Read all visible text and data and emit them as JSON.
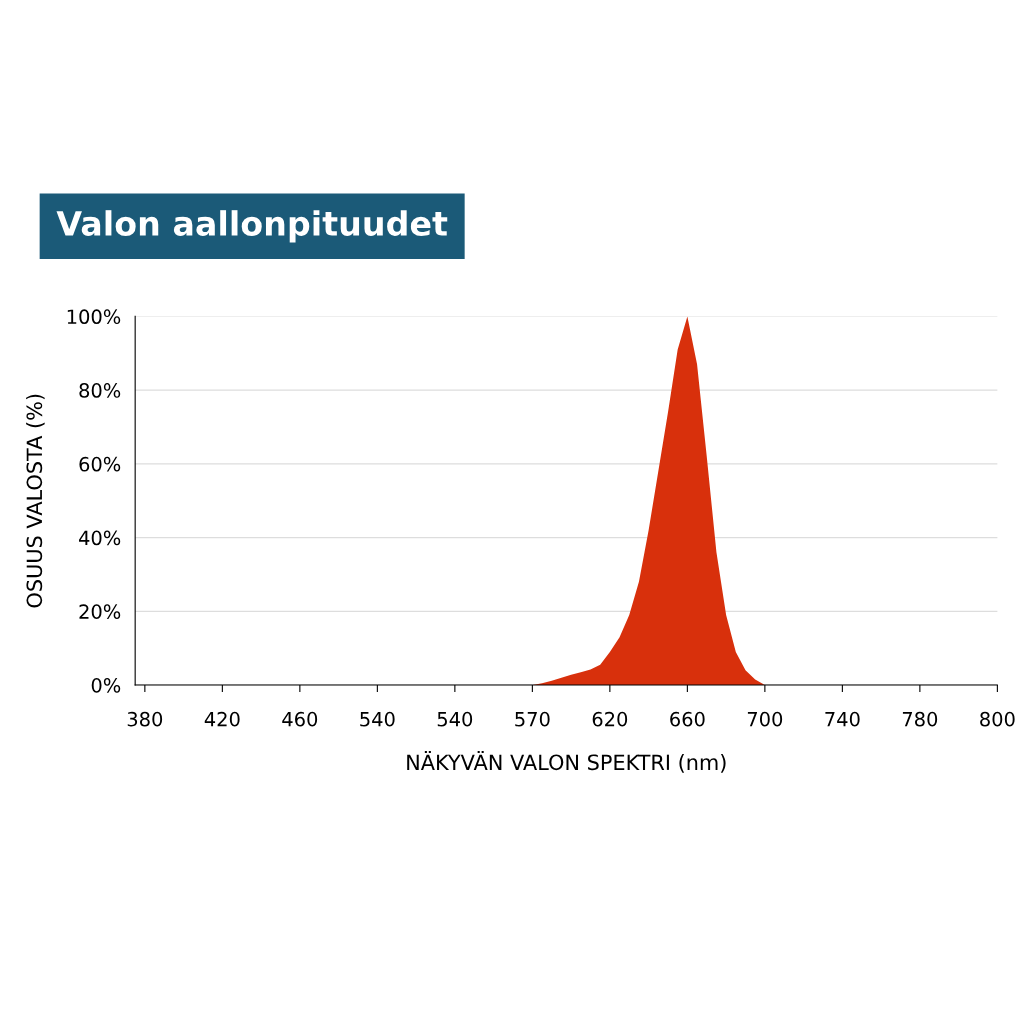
{
  "chart_data": {
    "type": "area",
    "title": "Valon aallonpituudet",
    "xlabel": "NÄKYVÄN VALON SPEKTRI (nm)",
    "ylabel": "OSUUS VALOSTA (%)",
    "categories": [
      "380",
      null,
      null,
      null,
      null,
      null,
      null,
      null,
      "420",
      null,
      null,
      null,
      null,
      null,
      null,
      null,
      "460",
      null,
      null,
      null,
      null,
      null,
      null,
      null,
      "540",
      null,
      null,
      null,
      null,
      null,
      null,
      null,
      "540",
      null,
      null,
      null,
      null,
      null,
      null,
      null,
      "570",
      null,
      null,
      null,
      null,
      null,
      null,
      null,
      "620",
      null,
      null,
      null,
      null,
      null,
      null,
      null,
      "660",
      null,
      null,
      null,
      null,
      null,
      null,
      null,
      "700",
      null,
      null,
      null,
      null,
      null,
      null,
      null,
      "740",
      null,
      null,
      null,
      null,
      null,
      null,
      null,
      "780",
      null,
      null,
      null,
      null,
      null,
      null,
      null,
      "800"
    ],
    "ylim": [
      0,
      100
    ],
    "yticks": [
      {
        "value": 0,
        "label": "0%"
      },
      {
        "value": 20,
        "label": "20%"
      },
      {
        "value": 40,
        "label": "40%"
      },
      {
        "value": 60,
        "label": "60%"
      },
      {
        "value": 80,
        "label": "80%"
      },
      {
        "value": 100,
        "label": "100%"
      }
    ],
    "grid": "y",
    "legend": false,
    "series": [
      {
        "color": "#d8300c",
        "values": [
          0,
          0,
          0,
          0,
          0,
          0,
          0,
          0,
          0,
          0,
          0,
          0,
          0,
          0,
          0,
          0,
          0,
          0,
          0,
          0,
          0,
          0,
          0,
          0,
          0,
          0,
          0,
          0,
          0,
          0,
          0,
          0,
          0,
          0,
          0,
          0,
          0,
          0,
          0,
          0,
          0,
          0.5,
          1.2,
          2,
          2.8,
          3.5,
          4.2,
          5.5,
          9,
          13,
          19,
          28,
          42,
          58,
          74,
          91,
          100,
          87,
          62,
          36,
          19,
          9,
          4,
          1.5,
          0,
          0,
          0,
          0,
          0,
          0,
          0,
          0,
          0,
          0,
          0,
          0,
          0,
          0,
          0,
          0,
          0,
          0,
          0,
          0,
          0,
          0,
          0,
          0,
          0
        ]
      }
    ]
  }
}
